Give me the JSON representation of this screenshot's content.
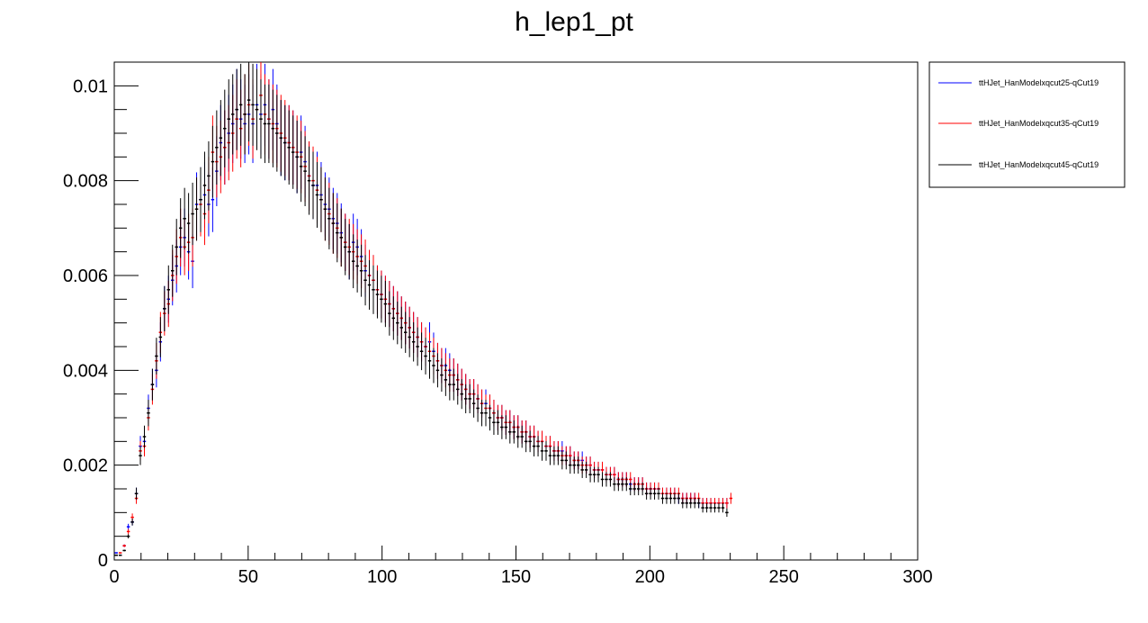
{
  "chart_data": {
    "type": "scatter",
    "title": "h_lep1_pt",
    "xlabel": "",
    "ylabel": "",
    "xlim": [
      0,
      300
    ],
    "ylim": [
      0,
      0.0105
    ],
    "x_ticks": [
      "0",
      "50",
      "100",
      "150",
      "200",
      "250",
      "300"
    ],
    "y_ticks": [
      "0",
      "0.002",
      "0.004",
      "0.006",
      "0.008",
      "0.01"
    ],
    "legend_position": "top-right (outside plot)",
    "bin_width": 1.5,
    "error_fraction": 0.09,
    "series": [
      {
        "name": "ttHJet_HanModelxqcut25-qCut19",
        "color": "#0000ff",
        "values": [
          0.00015,
          0.0001,
          0.0003,
          0.0007,
          0.0008,
          0.0014,
          0.0024,
          0.0025,
          0.0032,
          0.0037,
          0.004,
          0.0046,
          0.0053,
          0.0055,
          0.0059,
          0.0062,
          0.0066,
          0.0068,
          0.0065,
          0.0063,
          0.0075,
          0.0076,
          0.0077,
          0.0075,
          0.0076,
          0.0082,
          0.0088,
          0.0087,
          0.009,
          0.0092,
          0.0095,
          0.0093,
          0.0092,
          0.0094,
          0.0092,
          0.0096,
          0.0094,
          0.0096,
          0.0093,
          0.0095,
          0.0092,
          0.0089,
          0.0088,
          0.0088,
          0.0087,
          0.0085,
          0.0086,
          0.0084,
          0.0081,
          0.0079,
          0.0079,
          0.0077,
          0.0075,
          0.0074,
          0.0072,
          0.0071,
          0.0069,
          0.0067,
          0.0065,
          0.0067,
          0.0066,
          0.0064,
          0.0061,
          0.006,
          0.0059,
          0.0057,
          0.0056,
          0.0055,
          0.0054,
          0.0053,
          0.0052,
          0.0051,
          0.005,
          0.0049,
          0.0048,
          0.0047,
          0.0046,
          0.0045,
          0.0046,
          0.0044,
          0.0042,
          0.0041,
          0.0041,
          0.004,
          0.0039,
          0.0038,
          0.0037,
          0.0036,
          0.0035,
          0.0035,
          0.0034,
          0.0033,
          0.0033,
          0.0032,
          0.0031,
          0.003,
          0.003,
          0.0029,
          0.0029,
          0.0028,
          0.0028,
          0.0027,
          0.0027,
          0.0026,
          0.0026,
          0.0025,
          0.0025,
          0.0024,
          0.0024,
          0.0023,
          0.0023,
          0.0023,
          0.0022,
          0.0022,
          0.0021,
          0.0021,
          0.0021,
          0.002,
          0.002,
          0.0019,
          0.0019,
          0.0019,
          0.0018,
          0.0018,
          0.0018,
          0.0017,
          0.0017,
          0.0017,
          0.0016,
          0.0016,
          0.0016,
          0.0016,
          0.0015,
          0.0015,
          0.0015,
          0.0015,
          0.0014,
          0.0014,
          0.0014,
          0.0014,
          0.0013,
          0.0013,
          0.0013,
          0.0013,
          0.0013,
          0.0012,
          0.0012,
          0.0012,
          0.0012,
          0.0012,
          0.0012,
          0.0012,
          0.0012
        ]
      },
      {
        "name": "ttHJet_HanModelxqcut35-qCut19",
        "color": "#ff0000",
        "values": [
          0.0001,
          0.00015,
          0.0003,
          0.0006,
          0.0009,
          0.0013,
          0.0023,
          0.0024,
          0.003,
          0.0036,
          0.0042,
          0.0048,
          0.0052,
          0.0054,
          0.006,
          0.0064,
          0.0068,
          0.0066,
          0.0067,
          0.0068,
          0.0074,
          0.0075,
          0.0073,
          0.0078,
          0.0086,
          0.0084,
          0.0085,
          0.0087,
          0.0088,
          0.009,
          0.0093,
          0.0091,
          0.0094,
          0.0096,
          0.0093,
          0.0095,
          0.0098,
          0.0094,
          0.0093,
          0.0092,
          0.0091,
          0.009,
          0.0089,
          0.0088,
          0.0087,
          0.0086,
          0.0085,
          0.0083,
          0.0081,
          0.008,
          0.0078,
          0.0076,
          0.0074,
          0.0073,
          0.0071,
          0.007,
          0.0068,
          0.0067,
          0.0066,
          0.0065,
          0.0064,
          0.0063,
          0.0062,
          0.006,
          0.0059,
          0.0057,
          0.0056,
          0.0055,
          0.0054,
          0.0053,
          0.0052,
          0.0051,
          0.005,
          0.0049,
          0.0048,
          0.0047,
          0.0046,
          0.0045,
          0.0044,
          0.0043,
          0.0042,
          0.0041,
          0.004,
          0.0039,
          0.0039,
          0.0038,
          0.0037,
          0.0036,
          0.0035,
          0.0035,
          0.0034,
          0.0033,
          0.0032,
          0.0032,
          0.0031,
          0.003,
          0.003,
          0.0029,
          0.0029,
          0.0028,
          0.0028,
          0.0027,
          0.0027,
          0.0026,
          0.0026,
          0.0025,
          0.0025,
          0.0024,
          0.0024,
          0.0023,
          0.0023,
          0.0022,
          0.0022,
          0.0022,
          0.0021,
          0.0021,
          0.002,
          0.002,
          0.002,
          0.0019,
          0.0019,
          0.0019,
          0.0018,
          0.0018,
          0.0018,
          0.0017,
          0.0017,
          0.0017,
          0.0017,
          0.0016,
          0.0016,
          0.0016,
          0.0015,
          0.0015,
          0.0015,
          0.0015,
          0.0014,
          0.0014,
          0.0014,
          0.0014,
          0.0014,
          0.0013,
          0.0013,
          0.0013,
          0.0013,
          0.0013,
          0.0012,
          0.0012,
          0.0012,
          0.0012,
          0.0012,
          0.0012,
          0.0012,
          0.0013
        ]
      },
      {
        "name": "ttHJet_HanModelxqcut45-qCut19",
        "color": "#000000",
        "values": [
          0.0001,
          0.0001,
          0.0002,
          0.0005,
          0.0008,
          0.0014,
          0.0022,
          0.0026,
          0.0031,
          0.0037,
          0.0043,
          0.0047,
          0.0053,
          0.0057,
          0.0061,
          0.0066,
          0.007,
          0.0072,
          0.0071,
          0.0073,
          0.0074,
          0.0076,
          0.0079,
          0.0081,
          0.0084,
          0.0087,
          0.0089,
          0.0091,
          0.0093,
          0.0094,
          0.0095,
          0.0096,
          0.0094,
          0.0097,
          0.0096,
          0.0095,
          0.0093,
          0.0092,
          0.0092,
          0.0091,
          0.009,
          0.0089,
          0.0088,
          0.0087,
          0.0086,
          0.0085,
          0.0083,
          0.0082,
          0.008,
          0.0079,
          0.0077,
          0.0076,
          0.0074,
          0.0072,
          0.0071,
          0.0069,
          0.0068,
          0.0066,
          0.0065,
          0.0063,
          0.0062,
          0.0061,
          0.0059,
          0.0058,
          0.0057,
          0.0056,
          0.0055,
          0.0054,
          0.0052,
          0.0051,
          0.005,
          0.0049,
          0.0048,
          0.0047,
          0.0046,
          0.0045,
          0.0044,
          0.0043,
          0.0042,
          0.0041,
          0.004,
          0.0039,
          0.0038,
          0.0037,
          0.0037,
          0.0036,
          0.0035,
          0.0034,
          0.0034,
          0.0033,
          0.0032,
          0.0031,
          0.0031,
          0.003,
          0.0029,
          0.0029,
          0.0028,
          0.0028,
          0.0027,
          0.0027,
          0.0026,
          0.0026,
          0.0025,
          0.0025,
          0.0024,
          0.0024,
          0.0023,
          0.0023,
          0.0022,
          0.0022,
          0.0022,
          0.0021,
          0.0021,
          0.002,
          0.002,
          0.002,
          0.0019,
          0.0019,
          0.0018,
          0.0018,
          0.0018,
          0.0017,
          0.0017,
          0.0017,
          0.0016,
          0.0016,
          0.0016,
          0.0016,
          0.0015,
          0.0015,
          0.0015,
          0.0015,
          0.0014,
          0.0014,
          0.0014,
          0.0014,
          0.0013,
          0.0013,
          0.0013,
          0.0013,
          0.0013,
          0.0012,
          0.0012,
          0.0012,
          0.0012,
          0.0012,
          0.0011,
          0.0011,
          0.0011,
          0.0011,
          0.0011,
          0.0011,
          0.001
        ]
      }
    ]
  }
}
